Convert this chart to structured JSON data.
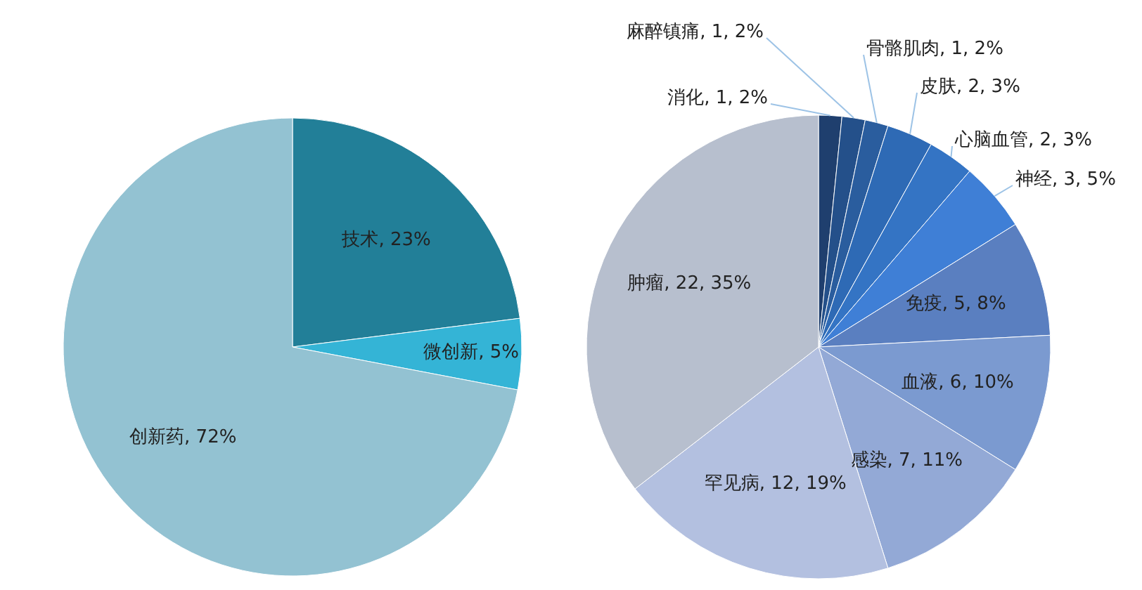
{
  "chart_data": [
    {
      "type": "pie",
      "categories": [
        "技术",
        "微创新",
        "创新药"
      ],
      "values": [
        23,
        5,
        72
      ],
      "value_labels": [
        "23%",
        "5%",
        "72%"
      ],
      "colors": [
        "#227f98",
        "#34b4d6",
        "#93c2d2"
      ]
    },
    {
      "type": "pie",
      "categories": [
        "消化",
        "麻醉镇痛",
        "骨骼肌肉",
        "皮肤",
        "心脑血管",
        "神经",
        "免疫",
        "血液",
        "感染",
        "罕见病",
        "肿瘤"
      ],
      "values": [
        1,
        1,
        1,
        2,
        2,
        3,
        5,
        6,
        7,
        12,
        22
      ],
      "value_labels": [
        "1, 2%",
        "1, 2%",
        "1, 2%",
        "2, 3%",
        "2, 3%",
        "3, 5%",
        "5, 8%",
        "6, 10%",
        "7, 11%",
        "12, 19%",
        "22, 35%"
      ],
      "colors": [
        "#1f3f6e",
        "#24508a",
        "#2a5d9e",
        "#2e6ab5",
        "#3474c4",
        "#3f7fd6",
        "#5a7fc0",
        "#7b9ad0",
        "#93a9d6",
        "#b3c0e0",
        "#b7bfce"
      ]
    }
  ]
}
